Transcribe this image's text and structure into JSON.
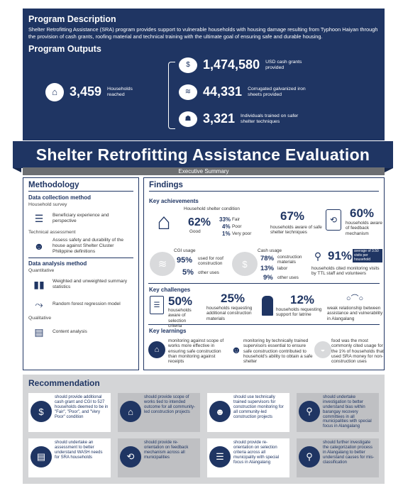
{
  "program": {
    "desc_title": "Program Description",
    "desc_text": "Shelter Retrofitting Assistance (SRA) program provides support to vulnerable households with housing damage resulting from Typhoon Haiyan through the provision of cash grants, roofing material and technical training with the ultimate goal of ensuring safe and durable housing.",
    "outputs_title": "Program Outputs",
    "households": {
      "value": "3,459",
      "label": "Households reached"
    },
    "outputs": [
      {
        "value": "1,474,580",
        "label": "USD cash grants provided",
        "icon": "cash-icon"
      },
      {
        "value": "44,331",
        "label": "Corrugated galvanized iron sheets provided",
        "icon": "roof-sheet-icon"
      },
      {
        "value": "3,321",
        "label": "Individuals trained on safer shelter techniques",
        "icon": "training-icon"
      }
    ]
  },
  "banner": {
    "title": "Shelter Retrofitting Assistance Evaluation",
    "subtitle": "Executive Summary"
  },
  "methodology": {
    "title": "Methodology",
    "collection_title": "Data collection method",
    "household_survey": "Household survey",
    "survey_item": "Beneficiary experience and perspective",
    "tech_assessment": "Technical assessment",
    "tech_item": "Assess safety and durability of the house against Shelter Cluster Philippine definitions",
    "analysis_title": "Data analysis method",
    "quantitative": "Quantitative",
    "quant_item1": "Weighted and unweighted summary statistics",
    "quant_item2": "Random forest regression model",
    "qualitative": "Qualitative",
    "qual_item": "Content analysis"
  },
  "findings": {
    "title": "Findings",
    "achievements_title": "Key achievements",
    "condition_label": "Household shelter condition",
    "good_pct": "62%",
    "good": "Good",
    "fair_pct": "33%",
    "fair": "Fair",
    "poor_pct": "4%",
    "poor": "Poor",
    "verypoor_pct": "1%",
    "verypoor": "Very poor",
    "aware_pct": "67%",
    "aware_label": "households aware of safe shelter techniques",
    "feedback_pct": "60%",
    "feedback_label": "households aware of feedback mechanism",
    "cgi_label": "CGI usage",
    "cgi_roof_pct": "95%",
    "cgi_roof": "used for roof construction",
    "cgi_other_pct": "5%",
    "cgi_other": "other uses",
    "cash_label": "Cash usage",
    "cash_mat_pct": "78%",
    "cash_mat": "construction materials",
    "cash_labor_pct": "13%",
    "cash_labor": "labor",
    "cash_other_pct": "9%",
    "cash_other": "other uses",
    "monitor_pct": "91%",
    "monitor_badge": "average of 3.50 visits per household",
    "monitor_label": "households cited monitoring visits by TTL staff and volunteers",
    "challenges_title": "Key challenges",
    "ch1_pct": "50%",
    "ch1_label": "households aware of selection criteria",
    "ch2_pct": "25%",
    "ch2_label": "households requesting additional construction materials",
    "ch3_pct": "12%",
    "ch3_label": "households requesting support for latrine",
    "ch4_label": "weak relationship between assistance and vulnerability in Alangalang",
    "learnings_title": "Key learnings",
    "l1": "monitoring against scope of works more effective in ensuring safe construction than monitoring against receipts",
    "l2": "monitoring by technically trained supervisors essential to ensure safe construction contributed to household's ability to obtain a safe shelter",
    "l3": "food was the most commonly cited usage for the 1% of households that used SRA money for non-construction uses"
  },
  "recommendation": {
    "title": "Recommendation",
    "items": [
      {
        "text": "should provide additional cash grant and CGI to 527 households deemed to be in \"Fair\", \"Poor\", and \"Very Poor\" condition",
        "icon": "cash-roof-icon"
      },
      {
        "text": "should provide scope of works tied to intended outcome for all community-led construction projects",
        "icon": "house-document-icon"
      },
      {
        "text": "should use technically trained supervisors for construction monitoring for all community-led construction projects",
        "icon": "worker-icon"
      },
      {
        "text": "should undertake investigation to better understand bias within barangay recovery committees in all municipalities with special focus in Alangalang",
        "icon": "investigation-icon"
      },
      {
        "text": "should undertake an assessment to better understand WASH needs for SRA households",
        "icon": "document-icon"
      },
      {
        "text": "should provide re-orientation on feedback mechanism across all municipalities",
        "icon": "feedback-icon"
      },
      {
        "text": "should provide re-orientation on selection criteria across all municipality with special focus in Alangalang",
        "icon": "criteria-icon"
      },
      {
        "text": "should further investigate the categorization process in Alangalang to better understand causes for mis-classification",
        "icon": "search-document-icon"
      }
    ]
  }
}
